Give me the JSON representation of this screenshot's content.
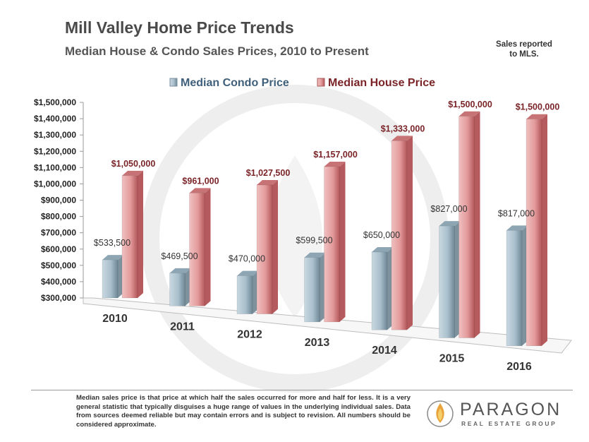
{
  "header": {
    "title": "Mill Valley Home Price Trends",
    "subtitle": "Median House & Condo Sales Prices, 2010 to Present",
    "note_line1": "Sales reported",
    "note_line2": "to MLS."
  },
  "footer": {
    "disclaimer": "Median sales price is that price at which half the sales occurred for more and half for less. It is a very general statistic that typically disguises a huge range of values in the underlying individual sales. Data from sources deemed reliable but may contain errors and is subject to revision. All numbers should be considered approximate.",
    "logo_name": "PARAGON",
    "logo_tagline": "REAL ESTATE GROUP",
    "logo_icon": "flame-circle-icon"
  },
  "colors": {
    "condo": "#a9bfcc",
    "house": "#e39a9b",
    "condo_text": "#3f5f7a",
    "house_text": "#7a2428"
  },
  "chart_data": {
    "type": "bar",
    "categories": [
      "2010",
      "2011",
      "2012",
      "2013",
      "2014",
      "2015",
      "2016"
    ],
    "series": [
      {
        "name": "Median Condo Price",
        "values": [
          533500,
          469500,
          470000,
          599500,
          650000,
          827000,
          817000
        ],
        "labels": [
          "$533,500",
          "$469,500",
          "$470,000",
          "$599,500",
          "$650,000",
          "$827,000",
          "$817,000"
        ]
      },
      {
        "name": "Median House Price",
        "values": [
          1050000,
          961000,
          1027500,
          1157000,
          1333000,
          1500000,
          1500000
        ],
        "labels": [
          "$1,050,000",
          "$961,000",
          "$1,027,500",
          "$1,157,000",
          "$1,333,000",
          "$1,500,000",
          "$1,500,000"
        ]
      }
    ],
    "yticks": [
      "$300,000",
      "$400,000",
      "$500,000",
      "$600,000",
      "$700,000",
      "$800,000",
      "$900,000",
      "$1,000,000",
      "$1,100,000",
      "$1,200,000",
      "$1,300,000",
      "$1,400,000",
      "$1,500,000"
    ],
    "ylim": [
      300000,
      1500000
    ],
    "legend_position": "top",
    "style": "3d-columns"
  }
}
